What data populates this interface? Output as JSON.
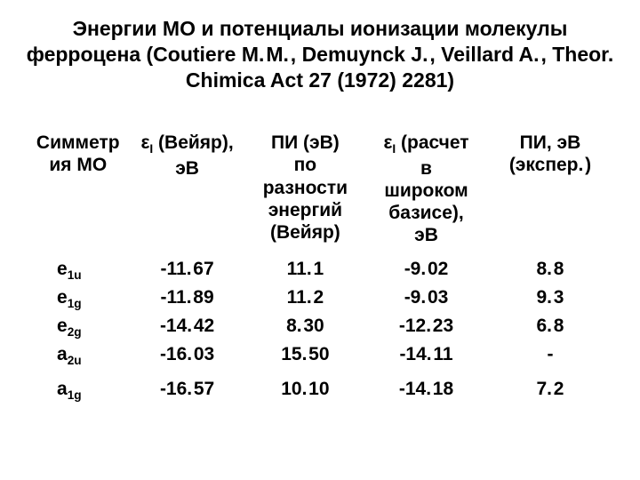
{
  "title": "Энергии МО и потенциалы ионизации молекулы ферроцена (Coutiere M. M. , Demuynck J. , Veillard A. , Theor. Chimica Act 27 (1972) 2281)",
  "headers": {
    "sym_line1": "Симметр",
    "sym_line2": "ия МО",
    "e1_line1": "ε",
    "e1_sub": "I",
    "e1_line1_tail": " (Вейяр),",
    "e1_line2": "эВ",
    "pi1_line1": "ПИ (эВ)",
    "pi1_line2": "по",
    "pi1_line3": "разности",
    "pi1_line4": "энергий",
    "pi1_line5": "(Вейяр)",
    "e2_line1": "ε",
    "e2_sub": "I",
    "e2_line1_tail": " (расчет",
    "e2_line2": "в",
    "e2_line3": "широком",
    "e2_line4": "базисе),",
    "e2_line5": "эВ",
    "pi2_line1": "ПИ, эВ",
    "pi2_line2": "(экспер. )"
  },
  "rows": [
    {
      "sym_base": "e",
      "sym_sub": "1u",
      "e_veillard": "-11. 67",
      "pi_diff": "11. 1",
      "e_wide": "-9. 02",
      "pi_exp": "8. 8"
    },
    {
      "sym_base": "e",
      "sym_sub": "1g",
      "e_veillard": "-11. 89",
      "pi_diff": "11. 2",
      "e_wide": "-9. 03",
      "pi_exp": "9. 3"
    },
    {
      "sym_base": "e",
      "sym_sub": "2g",
      "e_veillard": "-14. 42",
      "pi_diff": "8. 30",
      "e_wide": "-12. 23",
      "pi_exp": "6. 8"
    },
    {
      "sym_base": "a",
      "sym_sub": "2u",
      "e_veillard": "-16. 03",
      "pi_diff": "15. 50",
      "e_wide": "-14. 11",
      "pi_exp": "-"
    },
    {
      "sym_base": "a",
      "sym_sub": "1g",
      "e_veillard": "-16. 57",
      "pi_diff": "10. 10",
      "e_wide": "-14. 18",
      "pi_exp": "7. 2"
    }
  ]
}
